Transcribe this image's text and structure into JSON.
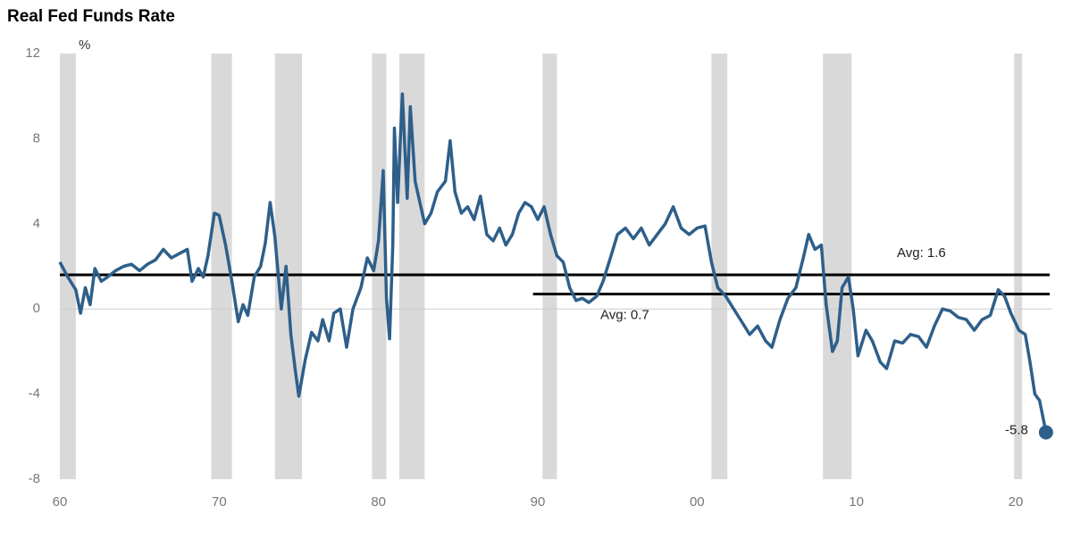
{
  "chart_data": {
    "type": "line",
    "title": "Real Fed Funds Rate",
    "y_unit": "%",
    "xlim": [
      1960,
      2022.3
    ],
    "ylim": [
      -8,
      12
    ],
    "xticks": [
      {
        "value": 1960,
        "label": "60"
      },
      {
        "value": 1970,
        "label": "70"
      },
      {
        "value": 1980,
        "label": "80"
      },
      {
        "value": 1990,
        "label": "90"
      },
      {
        "value": 2000,
        "label": "00"
      },
      {
        "value": 2010,
        "label": "10"
      },
      {
        "value": 2020,
        "label": "20"
      }
    ],
    "yticks": [
      12,
      8,
      4,
      0,
      -4,
      -8
    ],
    "zero_line": true,
    "shaded_periods": [
      [
        1960.0,
        1961.0
      ],
      [
        1969.5,
        1970.8
      ],
      [
        1973.5,
        1975.2
      ],
      [
        1979.6,
        1980.5
      ],
      [
        1981.3,
        1982.9
      ],
      [
        1990.3,
        1991.2
      ],
      [
        2000.9,
        2001.9
      ],
      [
        2007.9,
        2009.7
      ],
      [
        2019.9,
        2020.4
      ]
    ],
    "shade_color": "#d9d9d9",
    "reference_lines": [
      {
        "value": 1.6,
        "x_start": 1960,
        "label": "Avg: 1.6"
      },
      {
        "value": 0.7,
        "x_start": 1989.7,
        "label": "Avg: 0.7"
      }
    ],
    "series": [
      {
        "name": "Real Fed Funds Rate",
        "color": "#2e5f8a",
        "end_label": "-5.8",
        "x": [
          1960.0,
          1960.5,
          1961.0,
          1961.3,
          1961.6,
          1961.9,
          1962.2,
          1962.6,
          1963.0,
          1963.5,
          1964.0,
          1964.5,
          1965.0,
          1965.5,
          1966.0,
          1966.5,
          1967.0,
          1967.5,
          1968.0,
          1968.3,
          1968.7,
          1969.0,
          1969.3,
          1969.7,
          1970.0,
          1970.4,
          1970.8,
          1971.2,
          1971.5,
          1971.8,
          1972.2,
          1972.6,
          1972.9,
          1973.2,
          1973.5,
          1973.9,
          1974.2,
          1974.5,
          1974.8,
          1975.0,
          1975.4,
          1975.8,
          1976.2,
          1976.5,
          1976.9,
          1977.2,
          1977.6,
          1978.0,
          1978.4,
          1978.9,
          1979.3,
          1979.7,
          1980.0,
          1980.3,
          1980.5,
          1980.7,
          1980.9,
          1981.0,
          1981.2,
          1981.5,
          1981.8,
          1982.0,
          1982.3,
          1982.6,
          1982.9,
          1983.3,
          1983.7,
          1984.2,
          1984.5,
          1984.8,
          1985.2,
          1985.6,
          1986.0,
          1986.4,
          1986.8,
          1987.2,
          1987.6,
          1988.0,
          1988.4,
          1988.8,
          1989.2,
          1989.6,
          1990.0,
          1990.4,
          1990.8,
          1991.2,
          1991.6,
          1992.0,
          1992.4,
          1992.8,
          1993.2,
          1993.7,
          1994.1,
          1994.6,
          1995.0,
          1995.5,
          1996.0,
          1996.5,
          1997.0,
          1997.5,
          1998.0,
          1998.5,
          1999.0,
          1999.5,
          2000.0,
          2000.5,
          2000.9,
          2001.3,
          2001.8,
          2002.3,
          2002.8,
          2003.3,
          2003.8,
          2004.3,
          2004.7,
          2005.2,
          2005.7,
          2006.2,
          2006.7,
          2007.0,
          2007.4,
          2007.8,
          2008.1,
          2008.5,
          2008.8,
          2009.1,
          2009.5,
          2009.8,
          2010.1,
          2010.6,
          2011.0,
          2011.5,
          2011.9,
          2012.4,
          2012.9,
          2013.4,
          2013.9,
          2014.4,
          2014.9,
          2015.4,
          2015.9,
          2016.4,
          2016.9,
          2017.4,
          2017.9,
          2018.4,
          2018.9,
          2019.3,
          2019.7,
          2020.2,
          2020.6,
          2020.9,
          2021.2,
          2021.5,
          2021.9
        ],
        "values": [
          2.2,
          1.5,
          0.9,
          -0.2,
          1.0,
          0.2,
          1.9,
          1.3,
          1.5,
          1.8,
          2.0,
          2.1,
          1.8,
          2.1,
          2.3,
          2.8,
          2.4,
          2.6,
          2.8,
          1.3,
          1.9,
          1.5,
          2.5,
          4.5,
          4.4,
          3.0,
          1.3,
          -0.6,
          0.2,
          -0.3,
          1.5,
          2.0,
          3.1,
          5.0,
          3.4,
          0.0,
          2.0,
          -1.2,
          -3.0,
          -4.1,
          -2.4,
          -1.1,
          -1.5,
          -0.5,
          -1.5,
          -0.2,
          0.0,
          -1.8,
          0.0,
          1.0,
          2.4,
          1.8,
          3.2,
          6.5,
          0.5,
          -1.4,
          3.0,
          8.5,
          5.0,
          10.1,
          5.2,
          9.5,
          6.0,
          5.0,
          4.0,
          4.5,
          5.5,
          6.0,
          7.9,
          5.5,
          4.5,
          4.8,
          4.2,
          5.3,
          3.5,
          3.2,
          3.8,
          3.0,
          3.5,
          4.5,
          5.0,
          4.8,
          4.2,
          4.8,
          3.5,
          2.5,
          2.2,
          1.0,
          0.4,
          0.5,
          0.3,
          0.6,
          1.3,
          2.5,
          3.5,
          3.8,
          3.3,
          3.8,
          3.0,
          3.5,
          4.0,
          4.8,
          3.8,
          3.5,
          3.8,
          3.9,
          2.2,
          1.0,
          0.6,
          0.0,
          -0.6,
          -1.2,
          -0.8,
          -1.5,
          -1.8,
          -0.5,
          0.5,
          1.0,
          2.5,
          3.5,
          2.8,
          3.0,
          0.2,
          -2.0,
          -1.5,
          1.0,
          1.5,
          0.0,
          -2.2,
          -1.0,
          -1.5,
          -2.5,
          -2.8,
          -1.5,
          -1.6,
          -1.2,
          -1.3,
          -1.8,
          -0.8,
          0.0,
          -0.1,
          -0.4,
          -0.5,
          -1.0,
          -0.5,
          -0.3,
          0.9,
          0.6,
          -0.2,
          -1.0,
          -1.2,
          -2.5,
          -4.0,
          -4.3,
          -5.8
        ]
      }
    ]
  }
}
